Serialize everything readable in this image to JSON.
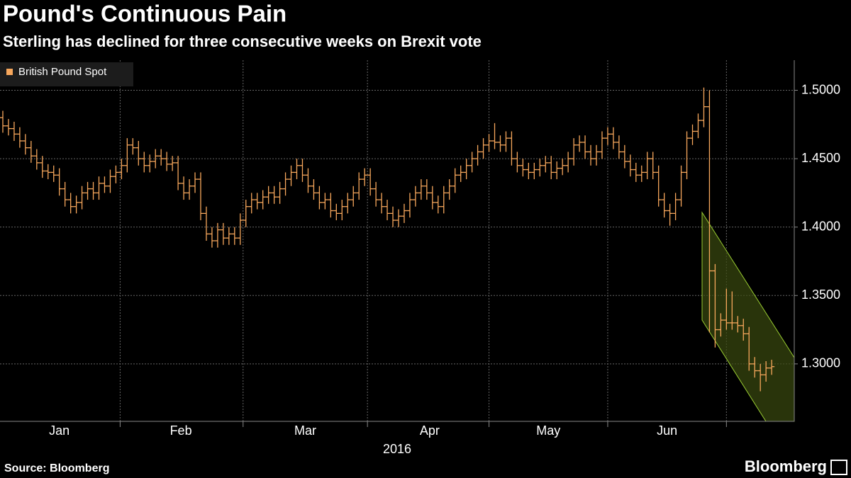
{
  "chart_data": {
    "type": "ohlc",
    "title": "Pound's Continuous Pain",
    "subtitle": "Sterling has declined for three consecutive weeks on Brexit vote",
    "x_label": "2016",
    "source": "Source: Bloomberg",
    "brand": "Bloomberg",
    "legend": "top-left",
    "grid": true,
    "xlim": [
      -0.5,
      140
    ],
    "xticks": [
      {
        "value": 10,
        "label": "Jan"
      },
      {
        "value": 31.5,
        "label": "Feb"
      },
      {
        "value": 53.5,
        "label": "Mar"
      },
      {
        "value": 75.5,
        "label": "Apr"
      },
      {
        "value": 96.5,
        "label": "May"
      },
      {
        "value": 117.5,
        "label": "Jun"
      }
    ],
    "ylim": [
      1.258,
      1.522
    ],
    "yticks": [
      {
        "value": 1.3,
        "label": "1.3000"
      },
      {
        "value": 1.35,
        "label": "1.3500"
      },
      {
        "value": 1.4,
        "label": "1.4000"
      },
      {
        "value": 1.45,
        "label": "1.4500"
      },
      {
        "value": 1.5,
        "label": "1.5000"
      }
    ],
    "series": [
      {
        "name": "British Pound Spot",
        "color": "#f7a75c",
        "open": [
          1.48,
          1.474,
          1.472,
          1.468,
          1.463,
          1.458,
          1.452,
          1.447,
          1.441,
          1.44,
          1.438,
          1.428,
          1.42,
          1.415,
          1.418,
          1.425,
          1.428,
          1.425,
          1.432,
          1.43,
          1.437,
          1.44,
          1.445,
          1.46,
          1.458,
          1.45,
          1.445,
          1.448,
          1.452,
          1.45,
          1.446,
          1.447,
          1.432,
          1.425,
          1.43,
          1.435,
          1.41,
          1.395,
          1.39,
          1.398,
          1.392,
          1.395,
          1.392,
          1.405,
          1.415,
          1.42,
          1.418,
          1.422,
          1.425,
          1.422,
          1.428,
          1.435,
          1.44,
          1.445,
          1.438,
          1.43,
          1.425,
          1.418,
          1.42,
          1.412,
          1.41,
          1.415,
          1.42,
          1.425,
          1.435,
          1.438,
          1.428,
          1.42,
          1.415,
          1.41,
          1.405,
          1.408,
          1.412,
          1.42,
          1.425,
          1.43,
          1.425,
          1.418,
          1.415,
          1.425,
          1.43,
          1.438,
          1.44,
          1.445,
          1.45,
          1.455,
          1.46,
          1.463,
          1.462,
          1.46,
          1.465,
          1.45,
          1.445,
          1.442,
          1.44,
          1.442,
          1.445,
          1.447,
          1.44,
          1.443,
          1.445,
          1.45,
          1.46,
          1.462,
          1.455,
          1.45,
          1.455,
          1.465,
          1.468,
          1.462,
          1.455,
          1.448,
          1.442,
          1.438,
          1.44,
          1.45,
          1.44,
          1.42,
          1.412,
          1.41,
          1.42,
          1.44,
          1.465,
          1.47,
          1.478,
          1.488,
          1.368,
          1.325,
          1.332,
          1.33,
          1.33,
          1.328,
          1.322,
          1.3,
          1.295,
          1.292,
          1.297
        ],
        "high": [
          1.485,
          1.479,
          1.477,
          1.473,
          1.468,
          1.463,
          1.457,
          1.452,
          1.446,
          1.445,
          1.443,
          1.433,
          1.425,
          1.423,
          1.43,
          1.433,
          1.433,
          1.437,
          1.437,
          1.442,
          1.445,
          1.45,
          1.465,
          1.465,
          1.463,
          1.455,
          1.453,
          1.457,
          1.457,
          1.455,
          1.452,
          1.452,
          1.437,
          1.435,
          1.44,
          1.44,
          1.415,
          1.4,
          1.403,
          1.403,
          1.4,
          1.4,
          1.41,
          1.42,
          1.425,
          1.425,
          1.427,
          1.43,
          1.43,
          1.433,
          1.44,
          1.445,
          1.45,
          1.45,
          1.443,
          1.435,
          1.43,
          1.425,
          1.425,
          1.417,
          1.42,
          1.425,
          1.43,
          1.44,
          1.443,
          1.443,
          1.433,
          1.425,
          1.42,
          1.415,
          1.413,
          1.417,
          1.425,
          1.43,
          1.435,
          1.435,
          1.43,
          1.423,
          1.43,
          1.435,
          1.443,
          1.445,
          1.45,
          1.455,
          1.46,
          1.465,
          1.468,
          1.476,
          1.467,
          1.47,
          1.47,
          1.455,
          1.45,
          1.447,
          1.447,
          1.45,
          1.452,
          1.452,
          1.448,
          1.45,
          1.455,
          1.465,
          1.467,
          1.467,
          1.46,
          1.46,
          1.47,
          1.473,
          1.473,
          1.467,
          1.46,
          1.453,
          1.447,
          1.445,
          1.455,
          1.455,
          1.445,
          1.425,
          1.417,
          1.425,
          1.445,
          1.47,
          1.475,
          1.483,
          1.502,
          1.5,
          1.373,
          1.337,
          1.355,
          1.353,
          1.335,
          1.333,
          1.327,
          1.305,
          1.3,
          1.302,
          1.303
        ],
        "low": [
          1.469,
          1.467,
          1.463,
          1.458,
          1.453,
          1.447,
          1.442,
          1.436,
          1.435,
          1.433,
          1.423,
          1.415,
          1.41,
          1.41,
          1.413,
          1.42,
          1.42,
          1.42,
          1.425,
          1.425,
          1.432,
          1.435,
          1.44,
          1.453,
          1.445,
          1.44,
          1.44,
          1.443,
          1.445,
          1.441,
          1.441,
          1.427,
          1.42,
          1.42,
          1.425,
          1.405,
          1.39,
          1.385,
          1.385,
          1.387,
          1.387,
          1.387,
          1.387,
          1.4,
          1.41,
          1.413,
          1.413,
          1.417,
          1.417,
          1.417,
          1.423,
          1.43,
          1.435,
          1.433,
          1.425,
          1.42,
          1.413,
          1.413,
          1.407,
          1.405,
          1.405,
          1.41,
          1.415,
          1.42,
          1.43,
          1.423,
          1.415,
          1.41,
          1.405,
          1.4,
          1.4,
          1.403,
          1.407,
          1.415,
          1.42,
          1.42,
          1.413,
          1.41,
          1.41,
          1.42,
          1.425,
          1.433,
          1.435,
          1.44,
          1.445,
          1.45,
          1.455,
          1.457,
          1.455,
          1.455,
          1.445,
          1.44,
          1.437,
          1.435,
          1.435,
          1.437,
          1.44,
          1.435,
          1.435,
          1.438,
          1.44,
          1.445,
          1.455,
          1.45,
          1.445,
          1.445,
          1.45,
          1.46,
          1.457,
          1.45,
          1.443,
          1.437,
          1.433,
          1.433,
          1.435,
          1.435,
          1.415,
          1.407,
          1.401,
          1.405,
          1.415,
          1.435,
          1.46,
          1.465,
          1.473,
          1.323,
          1.312,
          1.32,
          1.325,
          1.325,
          1.323,
          1.317,
          1.295,
          1.29,
          1.28,
          1.287,
          1.292
        ],
        "close": [
          1.474,
          1.472,
          1.468,
          1.463,
          1.458,
          1.452,
          1.447,
          1.441,
          1.44,
          1.438,
          1.428,
          1.42,
          1.415,
          1.418,
          1.425,
          1.428,
          1.425,
          1.432,
          1.43,
          1.437,
          1.44,
          1.445,
          1.46,
          1.458,
          1.45,
          1.445,
          1.448,
          1.452,
          1.45,
          1.446,
          1.447,
          1.432,
          1.425,
          1.43,
          1.435,
          1.41,
          1.395,
          1.39,
          1.398,
          1.392,
          1.395,
          1.392,
          1.405,
          1.415,
          1.42,
          1.418,
          1.422,
          1.425,
          1.422,
          1.428,
          1.435,
          1.44,
          1.445,
          1.438,
          1.43,
          1.425,
          1.418,
          1.42,
          1.412,
          1.41,
          1.415,
          1.42,
          1.425,
          1.435,
          1.438,
          1.428,
          1.42,
          1.415,
          1.41,
          1.405,
          1.408,
          1.412,
          1.42,
          1.425,
          1.43,
          1.425,
          1.418,
          1.415,
          1.425,
          1.43,
          1.438,
          1.44,
          1.445,
          1.45,
          1.455,
          1.46,
          1.463,
          1.462,
          1.46,
          1.465,
          1.45,
          1.445,
          1.442,
          1.44,
          1.442,
          1.445,
          1.447,
          1.44,
          1.443,
          1.445,
          1.45,
          1.46,
          1.462,
          1.455,
          1.45,
          1.455,
          1.465,
          1.468,
          1.462,
          1.455,
          1.448,
          1.442,
          1.438,
          1.44,
          1.45,
          1.44,
          1.42,
          1.412,
          1.41,
          1.42,
          1.44,
          1.465,
          1.47,
          1.478,
          1.488,
          1.368,
          1.325,
          1.332,
          1.33,
          1.33,
          1.328,
          1.322,
          1.3,
          1.295,
          1.292,
          1.297,
          1.298
        ]
      }
    ]
  }
}
